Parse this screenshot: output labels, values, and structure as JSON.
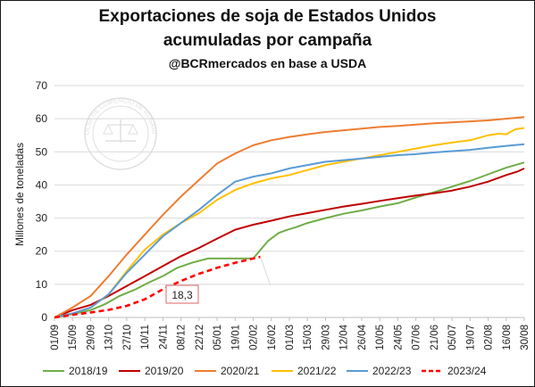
{
  "header": {
    "title_line1": "Exportaciones de soja de Estados Unidos",
    "title_line2": "acumuladas por campaña",
    "subtitle": "@BCRmercados en base a USDA"
  },
  "watermark": {
    "text": "BOLSA DE COMERCIO DE ROSARIO"
  },
  "chart_data": {
    "type": "line",
    "ylabel": "Millones de toneladas",
    "ylim": [
      0,
      70
    ],
    "yticks": [
      0,
      10,
      20,
      30,
      40,
      50,
      60,
      70
    ],
    "grid": true,
    "legend": "bottom",
    "x_start": "2023-09-01",
    "categories": [
      "01/09",
      "15/09",
      "29/09",
      "13/10",
      "27/10",
      "10/11",
      "24/11",
      "08/12",
      "22/12",
      "05/01",
      "19/01",
      "02/02",
      "16/02",
      "01/03",
      "15/03",
      "29/03",
      "12/04",
      "26/04",
      "10/05",
      "24/05",
      "07/06",
      "21/06",
      "05/07",
      "19/07",
      "02/08",
      "16/08",
      "30/08"
    ],
    "annotation": {
      "label": "18,3",
      "x": 11.4,
      "y": 18.3
    },
    "series": [
      {
        "name": "2018/19",
        "color": "#70ad47",
        "dashed": false,
        "x": [
          0,
          1,
          2,
          2.8,
          3.6,
          4.5,
          5.2,
          6.0,
          6.8,
          7.6,
          8.5,
          9.5,
          10.3,
          11.0,
          11.8,
          12.4,
          12.9,
          13.4,
          14.0,
          15.0,
          16.0,
          17.0,
          18.0,
          19.0,
          20.0,
          21.0,
          22.0,
          23.0,
          24.0,
          25.0,
          26.0
        ],
        "y": [
          0,
          1.0,
          2.2,
          4.0,
          6.5,
          8.5,
          10.5,
          12.5,
          15.0,
          16.5,
          17.8,
          17.8,
          17.8,
          17.8,
          23.0,
          25.5,
          26.5,
          27.3,
          28.5,
          30.0,
          31.3,
          32.3,
          33.5,
          34.5,
          36.2,
          37.8,
          39.5,
          41.2,
          43.2,
          45.2,
          46.8
        ]
      },
      {
        "name": "2019/20",
        "color": "#c00000",
        "dashed": false,
        "x": [
          0,
          1,
          2,
          3,
          4,
          5,
          6,
          7,
          8,
          9,
          10,
          11,
          12,
          13,
          14,
          15,
          16,
          17,
          18,
          19,
          20,
          21,
          22,
          23,
          24,
          25,
          25.6,
          26
        ],
        "y": [
          0,
          2.2,
          3.8,
          6.5,
          9.5,
          12.5,
          15.5,
          18.5,
          21.0,
          23.8,
          26.5,
          28.0,
          29.2,
          30.5,
          31.5,
          32.5,
          33.5,
          34.3,
          35.2,
          36.0,
          36.8,
          37.5,
          38.3,
          39.5,
          41.0,
          43.0,
          44.0,
          45.0
        ]
      },
      {
        "name": "2020/21",
        "color": "#ed7d31",
        "dashed": false,
        "x": [
          0,
          1,
          2,
          3,
          4,
          5,
          6,
          7,
          8,
          9,
          10,
          11,
          12,
          13,
          14,
          15,
          16,
          17,
          18,
          19,
          20,
          21,
          22,
          23,
          24,
          25,
          26
        ],
        "y": [
          0,
          3.0,
          6.5,
          12.5,
          19.0,
          25.0,
          31.0,
          36.5,
          41.5,
          46.5,
          49.5,
          52.0,
          53.5,
          54.5,
          55.3,
          56.0,
          56.5,
          57.0,
          57.5,
          57.8,
          58.2,
          58.6,
          58.9,
          59.2,
          59.5,
          60.0,
          60.5
        ]
      },
      {
        "name": "2021/22",
        "color": "#ffc000",
        "dashed": false,
        "x": [
          0,
          1,
          2,
          3,
          4,
          5,
          6,
          7,
          8,
          9,
          10,
          11,
          12,
          13,
          14,
          15,
          16,
          17,
          18,
          19,
          20,
          21,
          22,
          23,
          24,
          24.6,
          25,
          25.5,
          26
        ],
        "y": [
          0,
          1.2,
          3.0,
          7.0,
          14.0,
          20.5,
          25.0,
          28.5,
          31.5,
          35.5,
          38.5,
          40.5,
          42.0,
          43.0,
          44.5,
          46.0,
          47.0,
          48.0,
          49.0,
          50.0,
          51.0,
          52.0,
          52.8,
          53.5,
          55.0,
          55.5,
          55.3,
          56.8,
          57.2
        ]
      },
      {
        "name": "2022/23",
        "color": "#5b9bd5",
        "dashed": false,
        "x": [
          0,
          1,
          2,
          3,
          4,
          5,
          6,
          7,
          8,
          9,
          10,
          11,
          12,
          13,
          14,
          15,
          16,
          17,
          18,
          19,
          20,
          21,
          22,
          23,
          24,
          25,
          26
        ],
        "y": [
          0,
          1.2,
          3.0,
          7.0,
          13.5,
          19.0,
          24.5,
          28.5,
          32.5,
          37.0,
          41.0,
          42.5,
          43.5,
          45.0,
          46.0,
          47.0,
          47.5,
          48.0,
          48.5,
          49.0,
          49.3,
          49.8,
          50.2,
          50.6,
          51.2,
          51.8,
          52.3
        ]
      },
      {
        "name": "2023/24",
        "color": "#ff0000",
        "dashed": true,
        "x": [
          0,
          1,
          2,
          3,
          4,
          5,
          6,
          7,
          8,
          9,
          10,
          11,
          11.4
        ],
        "y": [
          0,
          0.8,
          1.5,
          2.3,
          3.5,
          5.5,
          8.5,
          11.0,
          13.2,
          15.0,
          16.5,
          17.8,
          18.3
        ]
      }
    ]
  }
}
